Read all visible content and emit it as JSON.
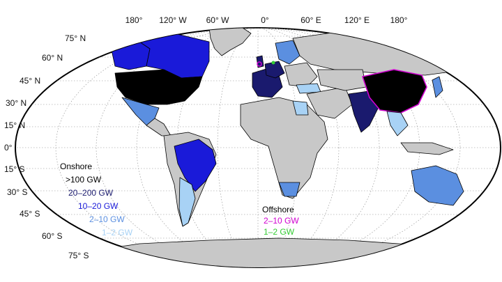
{
  "lon_labels": [
    "180°",
    "120° W",
    "60° W",
    "0°",
    "60° E",
    "120° E",
    "180°"
  ],
  "lat_labels": [
    "75° N",
    "60° N",
    "45° N",
    "30° N",
    "15° N",
    "0°",
    "15° S",
    "30° S",
    "45° S",
    "60° S",
    "75° S"
  ],
  "legend_onshore": {
    "title": "Onshore",
    "items": [
      {
        "label": ">100 GW",
        "color": "#000000"
      },
      {
        "label": "20–200 GW",
        "color": "#1a1a6e"
      },
      {
        "label": "10–20 GW",
        "color": "#1a1ad9"
      },
      {
        "label": "2–10 GW",
        "color": "#5b8fe0"
      },
      {
        "label": "1–2 GW",
        "color": "#a8d2f5"
      }
    ]
  },
  "legend_offshore": {
    "title": "Offshore",
    "items": [
      {
        "label": "2–10 GW",
        "color": "#d000d0"
      },
      {
        "label": "1–2 GW",
        "color": "#33cc33"
      }
    ]
  },
  "colors": {
    "no_data": "#c8c8c8",
    "ocean": "#ffffff",
    "border": "#000000",
    "gridline": "#888888"
  }
}
